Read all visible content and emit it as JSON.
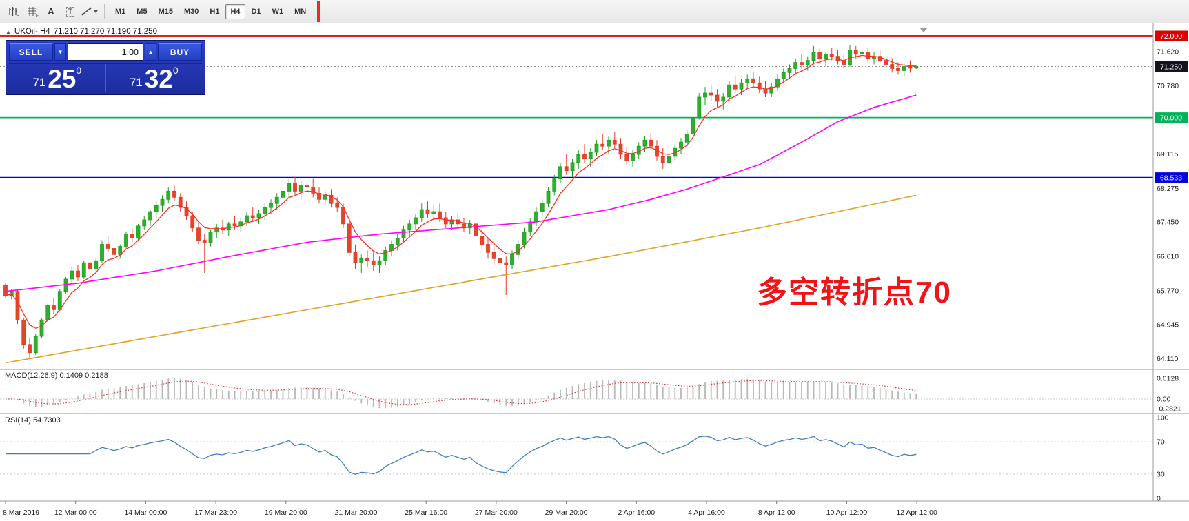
{
  "toolbar": {
    "icon_labels": {
      "e": "E",
      "f": "F",
      "a": "A",
      "t": "T"
    },
    "timeframes": [
      "M1",
      "M5",
      "M15",
      "M30",
      "H1",
      "H4",
      "D1",
      "W1",
      "MN"
    ],
    "active_timeframe": "H4"
  },
  "chart": {
    "symbol_label": "UKOil-,H4",
    "ohlc_label": "71.210 71.270 71.190 71.250",
    "annotation": {
      "text": "多空转折点70",
      "color": "#f21414"
    },
    "up_color": "#1ba11b",
    "down_color": "#e23a20",
    "price_axis": [
      {
        "value": "72.000",
        "badge": "red"
      },
      {
        "value": "71.620",
        "badge": null
      },
      {
        "value": "71.250",
        "badge": "dark"
      },
      {
        "value": "70.780",
        "badge": null
      },
      {
        "value": "70.000",
        "badge": "green"
      },
      {
        "value": "69.115",
        "badge": null
      },
      {
        "value": "68.533",
        "badge": "blue"
      },
      {
        "value": "68.275",
        "badge": null
      },
      {
        "value": "67.450",
        "badge": null
      },
      {
        "value": "66.610",
        "badge": null
      },
      {
        "value": "65.770",
        "badge": null
      },
      {
        "value": "64.945",
        "badge": null
      },
      {
        "value": "64.110",
        "badge": null
      }
    ],
    "hlines": [
      {
        "price": 72.0,
        "color": "#dd0000"
      },
      {
        "price": 70.0,
        "color": "#00b35a"
      },
      {
        "price": 68.533,
        "color": "#0000e0"
      }
    ],
    "bid": {
      "price": 71.25,
      "label": "71.250"
    },
    "ma_colors": {
      "fast": "#ff2d1e",
      "medium": "#ff00ff",
      "slow": "#dfa224"
    },
    "ma_medium_anchors": [
      [
        0,
        65.75
      ],
      [
        12,
        65.95
      ],
      [
        25,
        66.25
      ],
      [
        37,
        66.6
      ],
      [
        50,
        66.95
      ],
      [
        62,
        67.15
      ],
      [
        75,
        67.3
      ],
      [
        88,
        67.45
      ],
      [
        100,
        67.75
      ],
      [
        107,
        68.0
      ],
      [
        113,
        68.25
      ],
      [
        119,
        68.55
      ],
      [
        125,
        68.85
      ],
      [
        132,
        69.4
      ],
      [
        138,
        69.9
      ],
      [
        144,
        70.25
      ],
      [
        151,
        70.55
      ]
    ],
    "ma_slow_anchors": [
      [
        0,
        64.0
      ],
      [
        25,
        64.65
      ],
      [
        50,
        65.3
      ],
      [
        75,
        65.95
      ],
      [
        100,
        66.6
      ],
      [
        125,
        67.3
      ],
      [
        138,
        67.7
      ],
      [
        151,
        68.1
      ]
    ],
    "candles": [
      [
        65.9,
        65.95,
        65.6,
        65.65
      ],
      [
        65.65,
        65.8,
        65.55,
        65.75
      ],
      [
        65.75,
        65.8,
        64.95,
        65.05
      ],
      [
        65.05,
        65.1,
        64.35,
        64.45
      ],
      [
        64.45,
        64.6,
        64.11,
        64.25
      ],
      [
        64.25,
        64.7,
        64.2,
        64.65
      ],
      [
        64.65,
        65.1,
        64.6,
        65.05
      ],
      [
        65.05,
        65.45,
        65.0,
        65.4
      ],
      [
        65.4,
        65.6,
        65.2,
        65.3
      ],
      [
        65.3,
        65.8,
        65.25,
        65.75
      ],
      [
        65.75,
        66.1,
        65.7,
        66.05
      ],
      [
        66.05,
        66.35,
        65.95,
        66.25
      ],
      [
        66.25,
        66.4,
        66.0,
        66.1
      ],
      [
        66.1,
        66.5,
        66.05,
        66.45
      ],
      [
        66.45,
        66.6,
        66.2,
        66.3
      ],
      [
        66.3,
        66.55,
        66.25,
        66.5
      ],
      [
        66.5,
        67.0,
        66.45,
        66.9
      ],
      [
        66.9,
        67.1,
        66.7,
        66.8
      ],
      [
        66.8,
        67.05,
        66.6,
        66.65
      ],
      [
        66.65,
        66.9,
        66.55,
        66.85
      ],
      [
        66.85,
        67.2,
        66.8,
        67.15
      ],
      [
        67.15,
        67.3,
        66.95,
        67.05
      ],
      [
        67.05,
        67.4,
        67.0,
        67.35
      ],
      [
        67.35,
        67.6,
        67.25,
        67.5
      ],
      [
        67.5,
        67.75,
        67.35,
        67.7
      ],
      [
        67.7,
        67.95,
        67.55,
        67.85
      ],
      [
        67.85,
        68.1,
        67.7,
        68.0
      ],
      [
        68.0,
        68.3,
        67.9,
        68.2
      ],
      [
        68.2,
        68.35,
        67.95,
        68.05
      ],
      [
        68.05,
        68.15,
        67.7,
        67.8
      ],
      [
        67.8,
        67.95,
        67.5,
        67.6
      ],
      [
        67.6,
        67.7,
        67.2,
        67.3
      ],
      [
        67.3,
        67.45,
        66.9,
        67.0
      ],
      [
        67.0,
        67.15,
        66.2,
        66.95
      ],
      [
        66.95,
        67.25,
        66.85,
        67.2
      ],
      [
        67.2,
        67.4,
        67.05,
        67.3
      ],
      [
        67.3,
        67.5,
        67.15,
        67.25
      ],
      [
        67.25,
        67.45,
        67.1,
        67.4
      ],
      [
        67.4,
        67.6,
        67.25,
        67.35
      ],
      [
        67.35,
        67.55,
        67.2,
        67.45
      ],
      [
        67.45,
        67.7,
        67.35,
        67.6
      ],
      [
        67.6,
        67.8,
        67.45,
        67.55
      ],
      [
        67.55,
        67.75,
        67.4,
        67.65
      ],
      [
        67.65,
        67.9,
        67.5,
        67.8
      ],
      [
        67.8,
        68.0,
        67.65,
        67.9
      ],
      [
        67.9,
        68.15,
        67.75,
        68.05
      ],
      [
        68.05,
        68.3,
        67.9,
        68.2
      ],
      [
        68.2,
        68.5,
        68.05,
        68.4
      ],
      [
        68.4,
        68.55,
        68.1,
        68.2
      ],
      [
        68.2,
        68.45,
        68.0,
        68.35
      ],
      [
        68.35,
        68.55,
        68.2,
        68.3
      ],
      [
        68.3,
        68.5,
        68.05,
        68.15
      ],
      [
        68.15,
        68.3,
        67.9,
        68.0
      ],
      [
        68.0,
        68.2,
        67.85,
        68.1
      ],
      [
        68.1,
        68.25,
        67.8,
        67.9
      ],
      [
        67.9,
        68.05,
        67.7,
        67.8
      ],
      [
        67.8,
        67.9,
        67.3,
        67.4
      ],
      [
        67.4,
        67.55,
        66.6,
        66.7
      ],
      [
        66.7,
        66.9,
        66.3,
        66.45
      ],
      [
        66.45,
        66.65,
        66.2,
        66.55
      ],
      [
        66.55,
        66.75,
        66.35,
        66.5
      ],
      [
        66.5,
        66.7,
        66.25,
        66.4
      ],
      [
        66.4,
        66.6,
        66.2,
        66.5
      ],
      [
        66.5,
        66.85,
        66.4,
        66.75
      ],
      [
        66.75,
        67.0,
        66.6,
        66.9
      ],
      [
        66.9,
        67.15,
        66.75,
        67.05
      ],
      [
        67.05,
        67.35,
        66.95,
        67.25
      ],
      [
        67.25,
        67.5,
        67.1,
        67.4
      ],
      [
        67.4,
        67.65,
        67.25,
        67.55
      ],
      [
        67.55,
        67.9,
        67.45,
        67.75
      ],
      [
        67.75,
        67.95,
        67.55,
        67.65
      ],
      [
        67.65,
        67.85,
        67.5,
        67.7
      ],
      [
        67.7,
        67.9,
        67.45,
        67.55
      ],
      [
        67.55,
        67.7,
        67.3,
        67.4
      ],
      [
        67.4,
        67.6,
        67.25,
        67.5
      ],
      [
        67.5,
        67.65,
        67.3,
        67.4
      ],
      [
        67.4,
        67.55,
        67.2,
        67.3
      ],
      [
        67.3,
        67.5,
        67.15,
        67.4
      ],
      [
        67.4,
        67.5,
        67.0,
        67.1
      ],
      [
        67.1,
        67.25,
        66.8,
        66.9
      ],
      [
        66.9,
        67.05,
        66.55,
        66.7
      ],
      [
        66.7,
        66.85,
        66.4,
        66.55
      ],
      [
        66.55,
        66.7,
        66.3,
        66.45
      ],
      [
        66.45,
        66.6,
        65.66,
        66.4
      ],
      [
        66.4,
        66.75,
        66.3,
        66.65
      ],
      [
        66.65,
        67.0,
        66.55,
        66.9
      ],
      [
        66.9,
        67.3,
        66.8,
        67.2
      ],
      [
        67.2,
        67.55,
        67.1,
        67.45
      ],
      [
        67.45,
        67.8,
        67.35,
        67.7
      ],
      [
        67.7,
        68.0,
        67.6,
        67.9
      ],
      [
        67.9,
        68.3,
        67.8,
        68.2
      ],
      [
        68.2,
        68.6,
        68.1,
        68.5
      ],
      [
        68.5,
        68.9,
        68.4,
        68.8
      ],
      [
        68.8,
        69.1,
        68.6,
        68.7
      ],
      [
        68.7,
        69.0,
        68.55,
        68.9
      ],
      [
        68.9,
        69.2,
        68.75,
        69.1
      ],
      [
        69.1,
        69.35,
        68.9,
        69.0
      ],
      [
        69.0,
        69.25,
        68.8,
        69.15
      ],
      [
        69.15,
        69.45,
        69.05,
        69.35
      ],
      [
        69.35,
        69.6,
        69.2,
        69.3
      ],
      [
        69.3,
        69.55,
        69.1,
        69.45
      ],
      [
        69.45,
        69.65,
        69.25,
        69.35
      ],
      [
        69.35,
        69.5,
        69.0,
        69.1
      ],
      [
        69.1,
        69.3,
        68.85,
        68.95
      ],
      [
        68.95,
        69.2,
        68.8,
        69.1
      ],
      [
        69.1,
        69.4,
        69.0,
        69.3
      ],
      [
        69.3,
        69.55,
        69.15,
        69.45
      ],
      [
        69.45,
        69.6,
        69.2,
        69.3
      ],
      [
        69.3,
        69.45,
        68.95,
        69.05
      ],
      [
        69.05,
        69.25,
        68.75,
        68.9
      ],
      [
        68.9,
        69.15,
        68.8,
        69.05
      ],
      [
        69.05,
        69.35,
        68.95,
        69.25
      ],
      [
        69.25,
        69.5,
        69.1,
        69.4
      ],
      [
        69.4,
        69.7,
        69.3,
        69.6
      ],
      [
        69.6,
        70.1,
        69.5,
        70.0
      ],
      [
        70.0,
        70.6,
        69.95,
        70.5
      ],
      [
        70.5,
        70.75,
        70.3,
        70.6
      ],
      [
        70.6,
        70.8,
        70.4,
        70.55
      ],
      [
        70.55,
        70.7,
        70.25,
        70.4
      ],
      [
        70.4,
        70.6,
        70.2,
        70.5
      ],
      [
        70.5,
        70.9,
        70.4,
        70.8
      ],
      [
        70.8,
        71.0,
        70.6,
        70.7
      ],
      [
        70.7,
        70.95,
        70.55,
        70.85
      ],
      [
        70.85,
        71.05,
        70.7,
        70.95
      ],
      [
        70.95,
        71.1,
        70.75,
        70.85
      ],
      [
        70.85,
        71.0,
        70.6,
        70.7
      ],
      [
        70.7,
        70.9,
        70.5,
        70.6
      ],
      [
        70.6,
        70.85,
        70.5,
        70.75
      ],
      [
        70.75,
        71.05,
        70.65,
        70.95
      ],
      [
        70.95,
        71.2,
        70.85,
        71.1
      ],
      [
        71.1,
        71.3,
        70.95,
        71.2
      ],
      [
        71.2,
        71.45,
        71.05,
        71.35
      ],
      [
        71.35,
        71.55,
        71.2,
        71.3
      ],
      [
        71.3,
        71.5,
        71.15,
        71.4
      ],
      [
        71.4,
        71.75,
        71.3,
        71.6
      ],
      [
        71.6,
        71.72,
        71.35,
        71.45
      ],
      [
        71.45,
        71.6,
        71.25,
        71.55
      ],
      [
        71.55,
        71.7,
        71.4,
        71.5
      ],
      [
        71.5,
        71.65,
        71.3,
        71.4
      ],
      [
        71.4,
        71.55,
        71.2,
        71.3
      ],
      [
        71.3,
        71.77,
        71.25,
        71.65
      ],
      [
        71.65,
        71.75,
        71.45,
        71.55
      ],
      [
        71.55,
        71.7,
        71.4,
        71.6
      ],
      [
        71.6,
        71.7,
        71.35,
        71.45
      ],
      [
        71.45,
        71.6,
        71.3,
        71.5
      ],
      [
        71.5,
        71.65,
        71.35,
        71.4
      ],
      [
        71.4,
        71.55,
        71.2,
        71.3
      ],
      [
        71.3,
        71.45,
        71.1,
        71.2
      ],
      [
        71.2,
        71.35,
        71.05,
        71.15
      ],
      [
        71.15,
        71.3,
        71.0,
        71.25
      ],
      [
        71.25,
        71.4,
        71.1,
        71.21
      ],
      [
        71.21,
        71.27,
        71.19,
        71.25
      ]
    ]
  },
  "macd": {
    "label": "MACD(12,26,9)",
    "values": "0.1409 0.2188",
    "axis": [
      "0.6128",
      "0.00",
      "-0.2821"
    ],
    "hist_color": "#b8b8b8",
    "signal_color": "#e03030"
  },
  "rsi": {
    "label": "RSI(14)",
    "value": "54.7303",
    "axis": [
      "100",
      "70",
      "30",
      "0"
    ],
    "levels": [
      70,
      30
    ],
    "line_color": "#3e7fc1"
  },
  "trade_panel": {
    "sell_label": "SELL",
    "buy_label": "BUY",
    "volume": "1.00",
    "sell_price_prefix": "71",
    "sell_price_big": "25",
    "sell_price_sup": "0",
    "buy_price_prefix": "71",
    "buy_price_big": "32",
    "buy_price_sup": "0"
  },
  "time_axis": {
    "labels": [
      "8 Mar 2019",
      "12 Mar 00:00",
      "14 Mar 00:00",
      "17 Mar 23:00",
      "19 Mar 20:00",
      "21 Mar 20:00",
      "25 Mar 16:00",
      "27 Mar 20:00",
      "29 Mar 20:00",
      "2 Apr 16:00",
      "4 Apr 16:00",
      "8 Apr 12:00",
      "10 Apr 12:00",
      "12 Apr 12:00"
    ]
  }
}
